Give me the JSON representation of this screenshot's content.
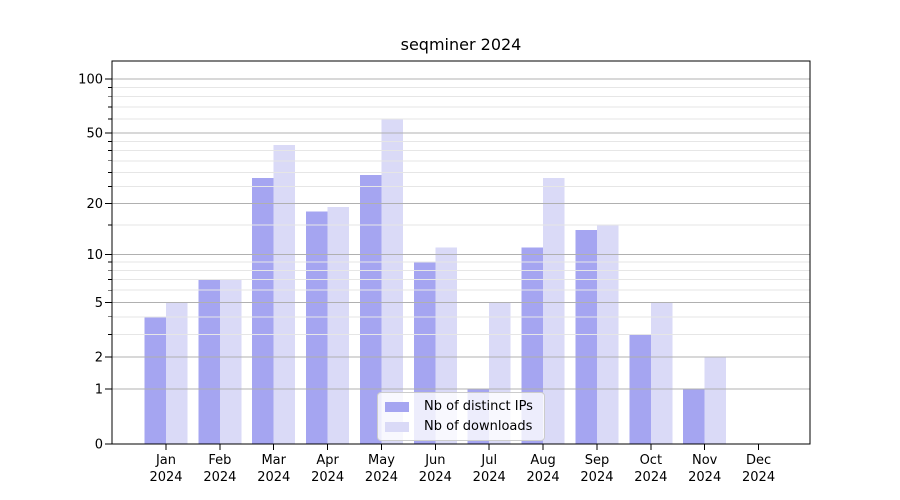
{
  "chart_data": {
    "type": "bar",
    "title": "seqminer 2024",
    "categories": [
      "Jan",
      "Feb",
      "Mar",
      "Apr",
      "May",
      "Jun",
      "Jul",
      "Aug",
      "Sep",
      "Oct",
      "Nov",
      "Dec"
    ],
    "x_tick_year": "2024",
    "series": [
      {
        "name": "Nb of distinct IPs",
        "color": "#a5a5f1",
        "values": [
          4,
          7,
          28,
          18,
          29,
          9,
          1,
          11,
          14,
          3,
          1,
          0
        ]
      },
      {
        "name": "Nb of downloads",
        "color": "#dadaf7",
        "values": [
          5,
          7,
          43,
          19,
          60,
          11,
          5,
          28,
          15,
          5,
          2,
          0
        ]
      }
    ],
    "y_scale": "log1p",
    "y_ticks_major": [
      0,
      1,
      2,
      5,
      10,
      20,
      50,
      100
    ],
    "y_ticks_minor": [
      3,
      4,
      6,
      7,
      8,
      9,
      15,
      25,
      30,
      35,
      40,
      45,
      60,
      70,
      80,
      90
    ],
    "ylim": [
      0,
      126
    ],
    "xlabel": "",
    "ylabel": "",
    "grid": "on",
    "legend_position": "lower center",
    "colors": {
      "grid_major": "#b0b0b0",
      "grid_minor": "#e6e6e6",
      "axis": "#000000",
      "text": "#000000",
      "background": "#ffffff",
      "legend_border": "#cccccc"
    }
  },
  "legend": {
    "items": [
      {
        "label": "Nb of distinct IPs",
        "color": "#a5a5f1"
      },
      {
        "label": "Nb of downloads",
        "color": "#dadaf7"
      }
    ]
  }
}
